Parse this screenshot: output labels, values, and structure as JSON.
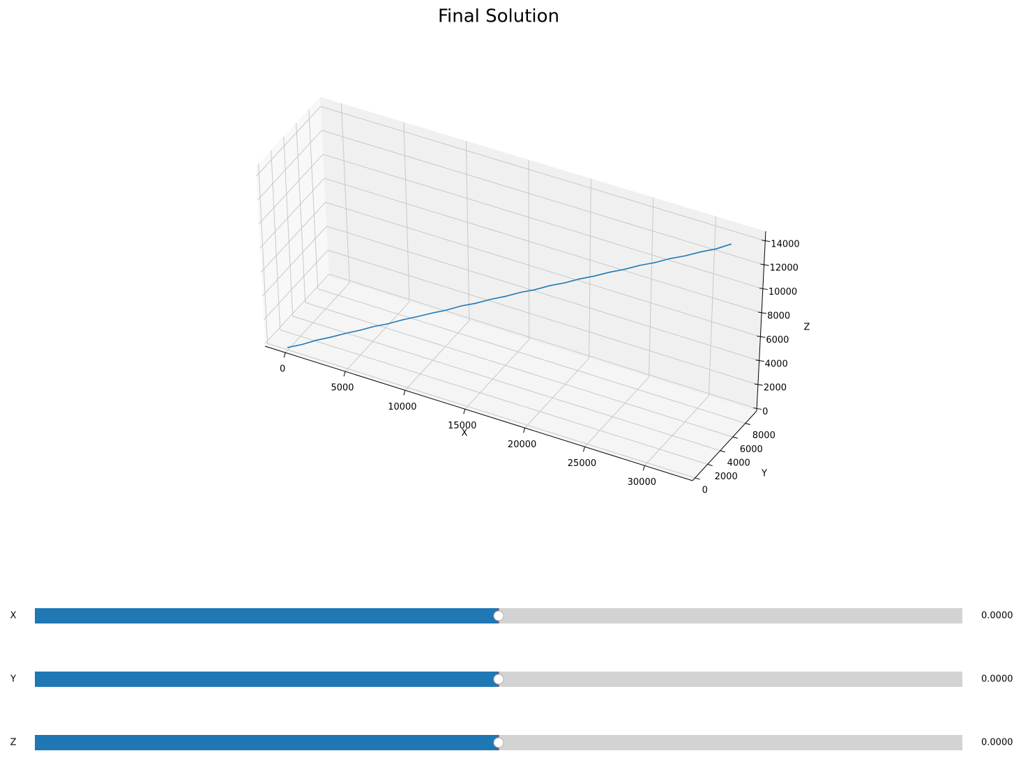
{
  "chart_data": {
    "type": "line3d",
    "title": "Final Solution",
    "xlabel": "X",
    "ylabel": "Y",
    "zlabel": "Z",
    "xlim": [
      -1700,
      34000
    ],
    "ylim": [
      -400,
      9800
    ],
    "zlim": [
      -200,
      14800
    ],
    "xticks": [
      0,
      5000,
      10000,
      15000,
      20000,
      25000,
      30000
    ],
    "yticks": [
      0,
      2000,
      4000,
      6000,
      8000
    ],
    "zticks": [
      0,
      2000,
      4000,
      6000,
      8000,
      10000,
      12000,
      14000
    ],
    "grid": true,
    "series": [
      {
        "color": "#1f77b4",
        "x": [
          0,
          1070,
          2140,
          3210,
          4280,
          5350,
          6420,
          7490,
          8560,
          9630,
          10700,
          11770,
          12840,
          13910,
          14980,
          16050,
          17120,
          18190,
          19260,
          20330,
          21400,
          22470,
          23540,
          24610,
          25680,
          26750,
          27820,
          28890,
          29960,
          31030,
          32100
        ],
        "y": [
          0,
          310,
          520,
          850,
          1060,
          1380,
          1590,
          1880,
          2150,
          2410,
          2700,
          2930,
          3240,
          3480,
          3790,
          4020,
          4330,
          4570,
          4860,
          5120,
          5390,
          5650,
          5940,
          6180,
          6490,
          6720,
          7030,
          7280,
          7560,
          7830,
          8100
        ],
        "z": [
          0,
          420,
          980,
          1390,
          1910,
          2330,
          2860,
          3270,
          3780,
          4230,
          4700,
          5150,
          5660,
          6080,
          6570,
          7020,
          7510,
          7940,
          8450,
          8870,
          9380,
          9810,
          10300,
          10740,
          11230,
          11660,
          12160,
          12580,
          13080,
          13510,
          14100
        ]
      }
    ]
  },
  "sliders": [
    {
      "label": "X",
      "value": "0.0000"
    },
    {
      "label": "Y",
      "value": "0.0000"
    },
    {
      "label": "Z",
      "value": "0.0000"
    }
  ]
}
